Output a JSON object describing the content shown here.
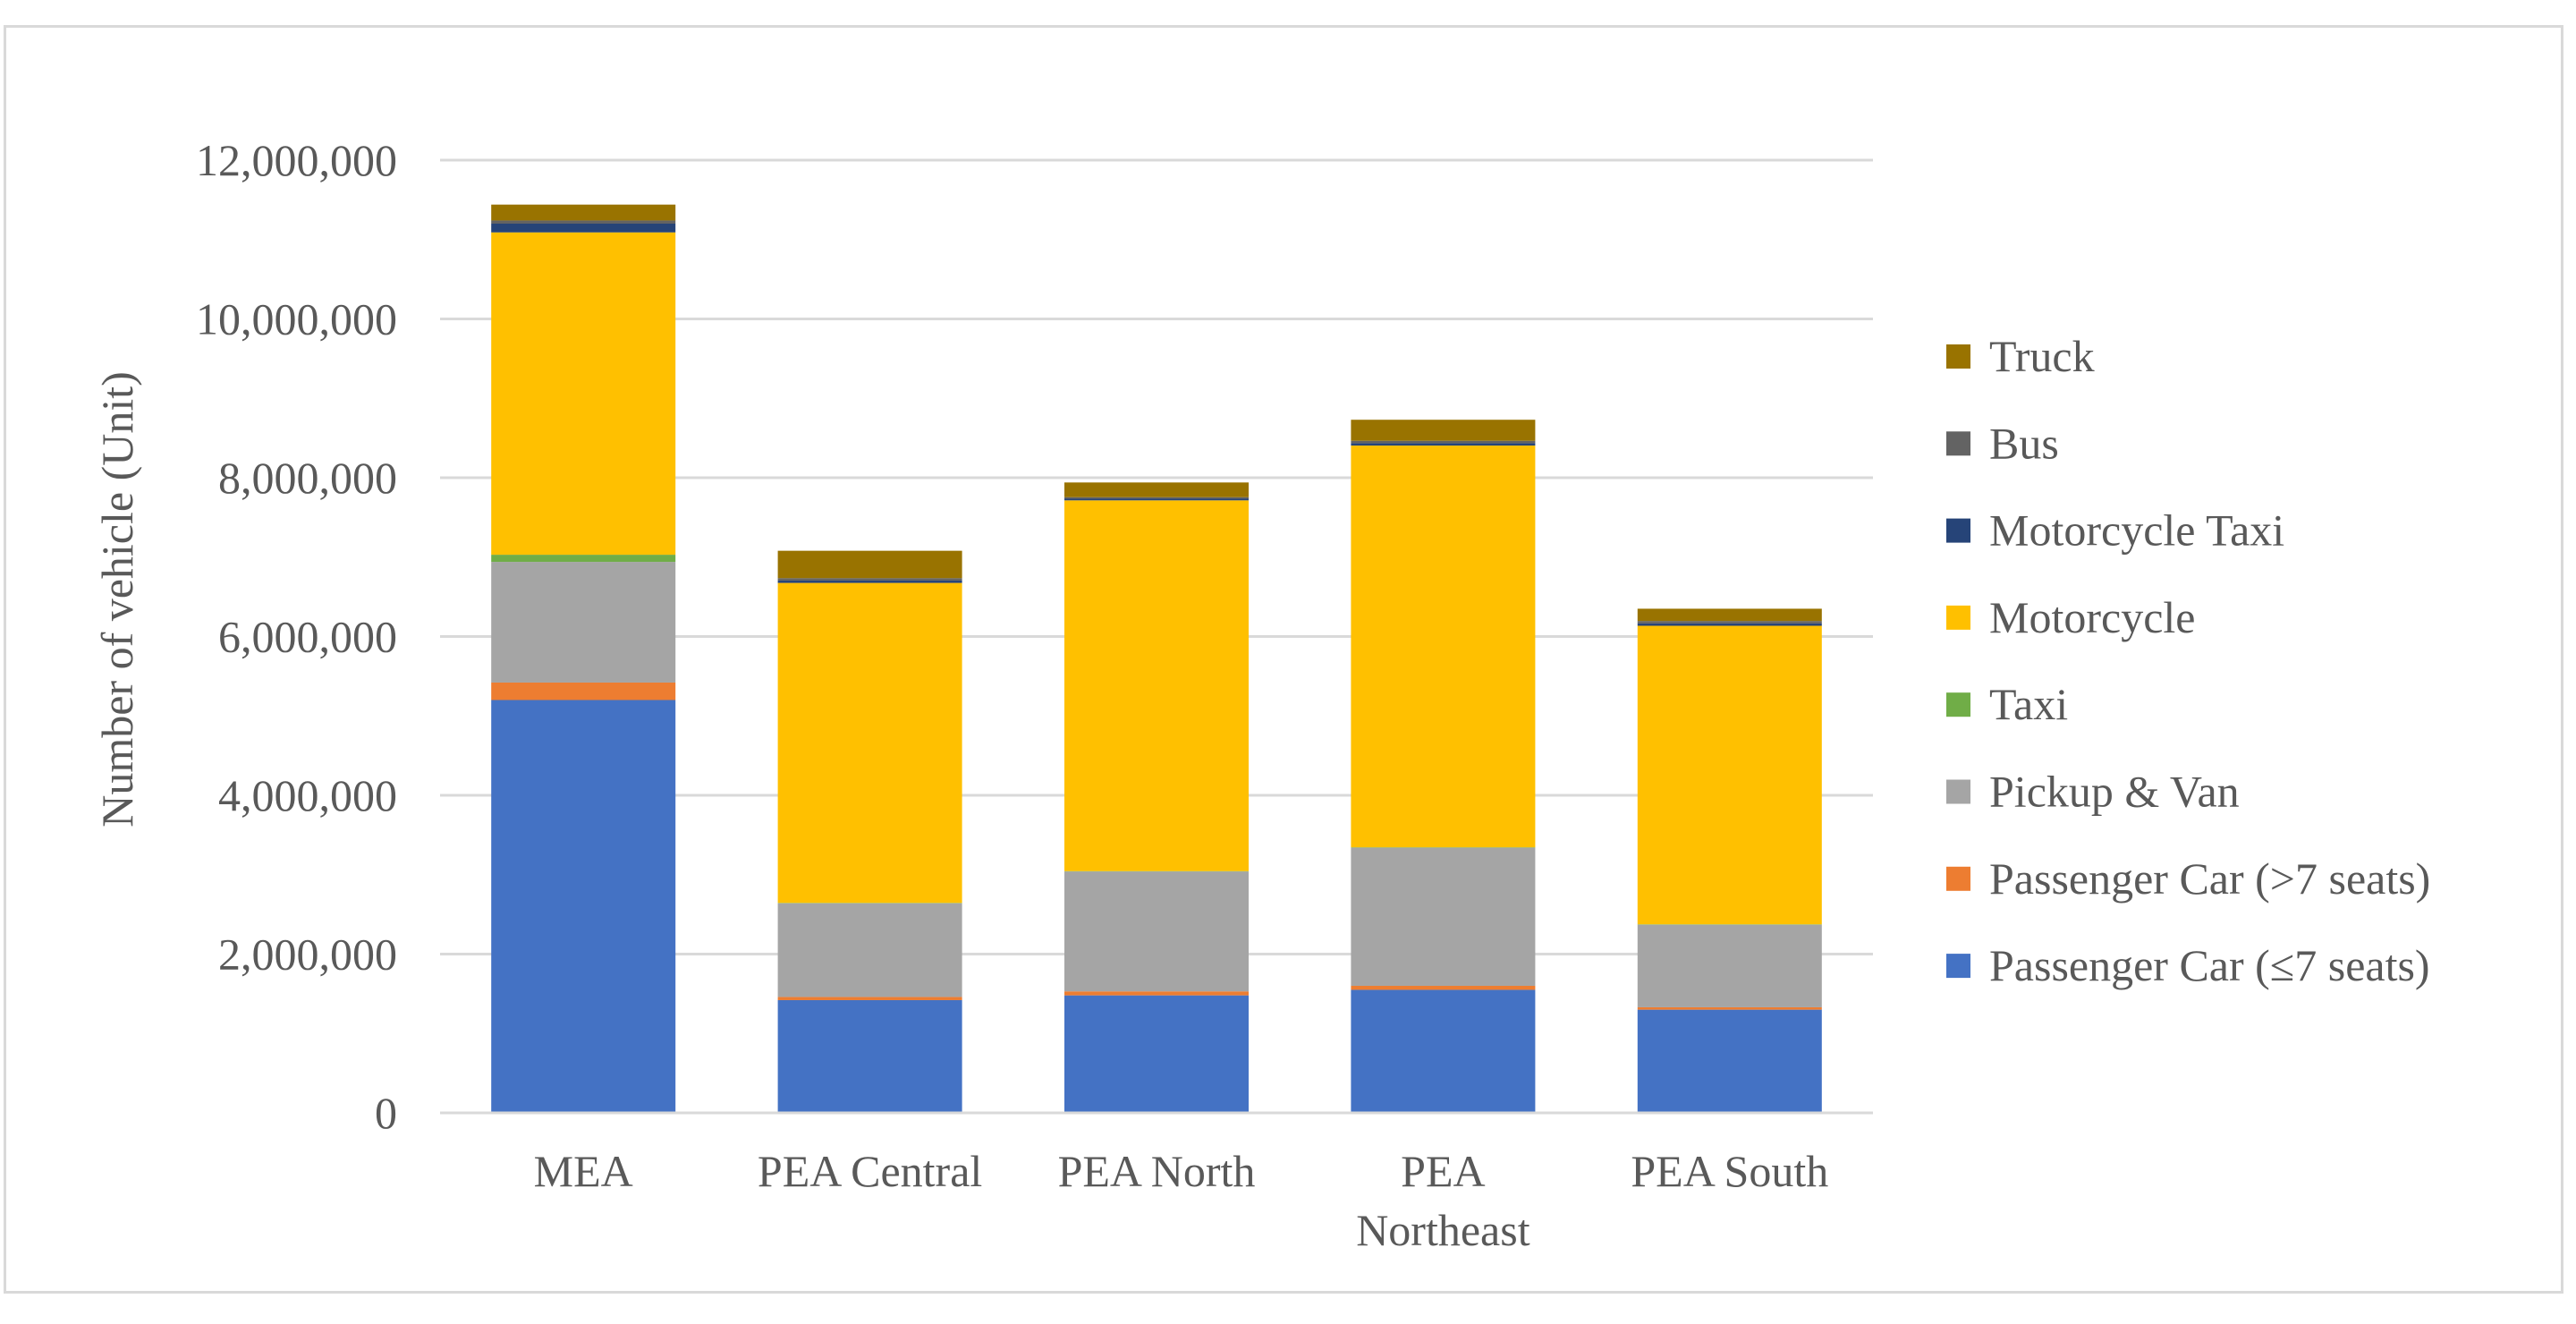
{
  "chart_data": {
    "type": "bar",
    "stacked": true,
    "title": "",
    "xlabel": "",
    "ylabel": "Number of vehicle (Unit)",
    "ylim": [
      0,
      12000000
    ],
    "yticks": [
      0,
      2000000,
      4000000,
      6000000,
      8000000,
      10000000,
      12000000
    ],
    "ytick_labels": [
      "0",
      "2,000,000",
      "4,000,000",
      "6,000,000",
      "8,000,000",
      "10,000,000",
      "12,000,000"
    ],
    "grid": true,
    "legend_position": "right",
    "categories": [
      {
        "label": "MEA",
        "lines": [
          "MEA"
        ]
      },
      {
        "label": "PEA Central",
        "lines": [
          "PEA Central"
        ]
      },
      {
        "label": "PEA North",
        "lines": [
          "PEA North"
        ]
      },
      {
        "label": "PEA Northeast",
        "lines": [
          "PEA",
          "Northeast"
        ]
      },
      {
        "label": "PEA South",
        "lines": [
          "PEA South"
        ]
      }
    ],
    "series": [
      {
        "name": "Passenger Car (≤7 seats)",
        "color": "#4472c4",
        "values": [
          5200000,
          1420000,
          1480000,
          1550000,
          1300000
        ]
      },
      {
        "name": "Passenger Car (>7 seats)",
        "color": "#ed7d31",
        "values": [
          220000,
          40000,
          50000,
          50000,
          30000
        ]
      },
      {
        "name": "Pickup & Van",
        "color": "#a5a5a5",
        "values": [
          1520000,
          1180000,
          1510000,
          1740000,
          1040000
        ]
      },
      {
        "name": "Taxi",
        "color": "#70ad47",
        "values": [
          90000,
          5000,
          5000,
          5000,
          5000
        ]
      },
      {
        "name": "Motorcycle",
        "color": "#ffc000",
        "values": [
          4060000,
          4030000,
          4670000,
          5060000,
          3760000
        ]
      },
      {
        "name": "Motorcycle Taxi",
        "color": "#264478",
        "values": [
          110000,
          30000,
          20000,
          30000,
          30000
        ]
      },
      {
        "name": "Bus",
        "color": "#636363",
        "values": [
          40000,
          30000,
          20000,
          30000,
          30000
        ]
      },
      {
        "name": "Truck",
        "color": "#997300",
        "values": [
          200000,
          345000,
          185000,
          265000,
          155000
        ]
      }
    ]
  }
}
